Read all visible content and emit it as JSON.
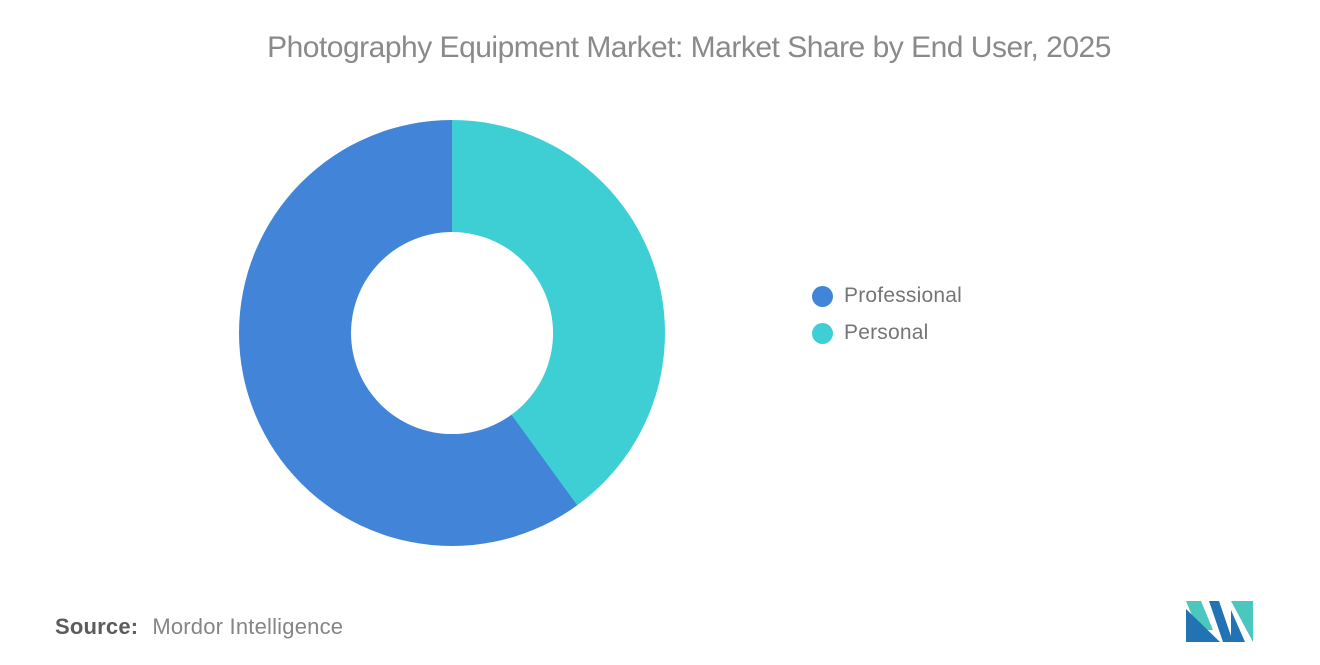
{
  "header": {
    "title": "Photography Equipment Market: Market Share by End User, 2025",
    "title_color": "#8a8a8a"
  },
  "chart_data": {
    "type": "pie",
    "subtype": "donut",
    "title": "Photography Equipment Market: Market Share by End User, 2025",
    "series": [
      {
        "name": "Professional",
        "value": 60,
        "color": "#4285d8"
      },
      {
        "name": "Personal",
        "value": 40,
        "color": "#3ecfd5"
      }
    ],
    "unit": "%",
    "values_are_estimates_from_arc_angles": true,
    "donut_hole_ratio": 0.474,
    "start_angle_deg": 0,
    "draw_direction": "counterclockwise-from-top",
    "legend_position": "right",
    "data_labels": "none"
  },
  "footer": {
    "source_label": "Source:",
    "source_value": "Mordor Intelligence"
  },
  "logo": {
    "name": "mordor-intelligence-logo",
    "teal": "#4cc7bf",
    "blue": "#2173b4"
  }
}
